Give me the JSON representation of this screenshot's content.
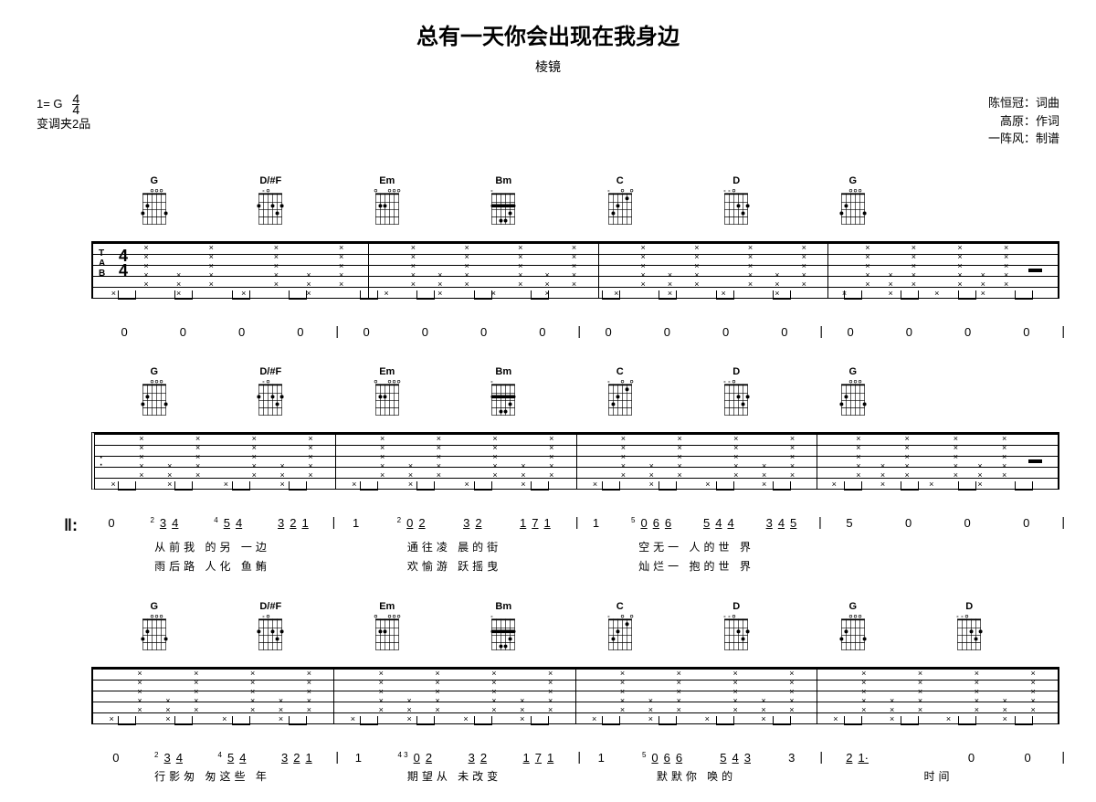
{
  "title": "总有一天你会出现在我身边",
  "subtitle": "棱镜",
  "key_label": "1= G",
  "time_sig_top": "4",
  "time_sig_bottom": "4",
  "capo_label": "变调夹2品",
  "credits": {
    "line1": "陈恒冠：词曲",
    "line2": "高原：作词",
    "line3": "一阵风：制谱"
  },
  "colors": {
    "ink": "#000000",
    "paper": "#ffffff"
  },
  "chords": {
    "G": {
      "name": "G",
      "frets": [
        3,
        2,
        0,
        0,
        0,
        3
      ],
      "mutes": [
        false,
        false,
        false,
        false,
        false,
        false
      ]
    },
    "D_Fs": {
      "name": "D/#F",
      "frets": [
        2,
        0,
        0,
        2,
        3,
        2
      ],
      "mutes": [
        false,
        true,
        false,
        false,
        false,
        false
      ]
    },
    "Em": {
      "name": "Em",
      "frets": [
        0,
        2,
        2,
        0,
        0,
        0
      ],
      "mutes": [
        false,
        false,
        false,
        false,
        false,
        false
      ]
    },
    "Bm": {
      "name": "Bm",
      "frets": [
        2,
        2,
        4,
        4,
        3,
        2
      ],
      "mutes": [
        true,
        false,
        false,
        false,
        false,
        false
      ],
      "barre_fret": 2
    },
    "C": {
      "name": "C",
      "frets": [
        0,
        3,
        2,
        0,
        1,
        0
      ],
      "mutes": [
        true,
        false,
        false,
        false,
        false,
        false
      ]
    },
    "D": {
      "name": "D",
      "frets": [
        0,
        0,
        0,
        2,
        3,
        2
      ],
      "mutes": [
        true,
        true,
        false,
        false,
        false,
        false
      ]
    }
  },
  "systems": [
    {
      "has_time_sig": true,
      "has_repeat_start": false,
      "measures": [
        {
          "chords": [
            "G",
            "D_Fs"
          ],
          "numbers": [
            "0",
            "0",
            "0",
            "0"
          ],
          "lyrics1": "",
          "lyrics2": "",
          "has_rest_end": false
        },
        {
          "chords": [
            "Em",
            "Bm"
          ],
          "numbers": [
            "0",
            "0",
            "0",
            "0"
          ],
          "lyrics1": "",
          "lyrics2": "",
          "has_rest_end": false
        },
        {
          "chords": [
            "C",
            "D"
          ],
          "numbers": [
            "0",
            "0",
            "0",
            "0"
          ],
          "lyrics1": "",
          "lyrics2": "",
          "has_rest_end": false
        },
        {
          "chords": [
            "G"
          ],
          "numbers": [
            "0",
            "0",
            "0",
            "0"
          ],
          "lyrics1": "",
          "lyrics2": "",
          "has_rest_end": true
        }
      ]
    },
    {
      "has_time_sig": false,
      "has_repeat_start": true,
      "measures": [
        {
          "chords": [
            "G",
            "D_Fs"
          ],
          "numbers": [
            "0",
            "3 4",
            "5 4",
            "3 2 1"
          ],
          "lyrics1": "从前我 的另 一边",
          "lyrics2": "雨后路 人化 鱼鲔",
          "grace": [
            "",
            "2",
            "4",
            ""
          ],
          "has_rest_end": false
        },
        {
          "chords": [
            "Em",
            "Bm"
          ],
          "numbers": [
            "1",
            "0 2",
            "3 2",
            "1 7 1"
          ],
          "lyrics1": "通往凌 晨的街",
          "lyrics2": "欢愉游 跃摇曳",
          "grace": [
            "",
            "2",
            "",
            ""
          ],
          "has_rest_end": false
        },
        {
          "chords": [
            "C",
            "D"
          ],
          "numbers": [
            "1",
            "0 6 6",
            "5 4 4",
            "3 4 5"
          ],
          "lyrics1": "空无一 人的世 界",
          "lyrics2": "灿烂一 抱的世 界",
          "grace": [
            "",
            "5",
            "",
            ""
          ],
          "has_rest_end": false
        },
        {
          "chords": [
            "G"
          ],
          "numbers": [
            "5",
            "0",
            "0",
            "0"
          ],
          "lyrics1": "",
          "lyrics2": "",
          "has_rest_end": true
        }
      ]
    },
    {
      "has_time_sig": false,
      "has_repeat_start": false,
      "measures": [
        {
          "chords": [
            "G",
            "D_Fs"
          ],
          "numbers": [
            "0",
            "3 4",
            "5 4",
            "3 2 1"
          ],
          "lyrics1": "行影匆 匆这些 年",
          "lyrics2": "",
          "grace": [
            "",
            "2",
            "4",
            ""
          ],
          "has_rest_end": false
        },
        {
          "chords": [
            "Em",
            "Bm"
          ],
          "numbers": [
            "1",
            "0 2",
            "3 2",
            "1 7 1"
          ],
          "lyrics1": "期望从 未改变",
          "lyrics2": "",
          "grace": [
            "",
            "4 3",
            "",
            ""
          ],
          "has_rest_end": false
        },
        {
          "chords": [
            "C",
            "D"
          ],
          "numbers": [
            "1",
            "0 6 6",
            "5 4 3",
            "3"
          ],
          "lyrics1": "默默你 唤的",
          "  lyrics2": "",
          "grace": [
            "",
            "5",
            "",
            ""
          ],
          "has_rest_end": false
        },
        {
          "chords": [
            "G",
            "D"
          ],
          "numbers": [
            "2 1·",
            "",
            "0",
            "0"
          ],
          "lyrics1": "时间",
          "lyrics2": "",
          "has_rest_end": false
        }
      ]
    }
  ]
}
